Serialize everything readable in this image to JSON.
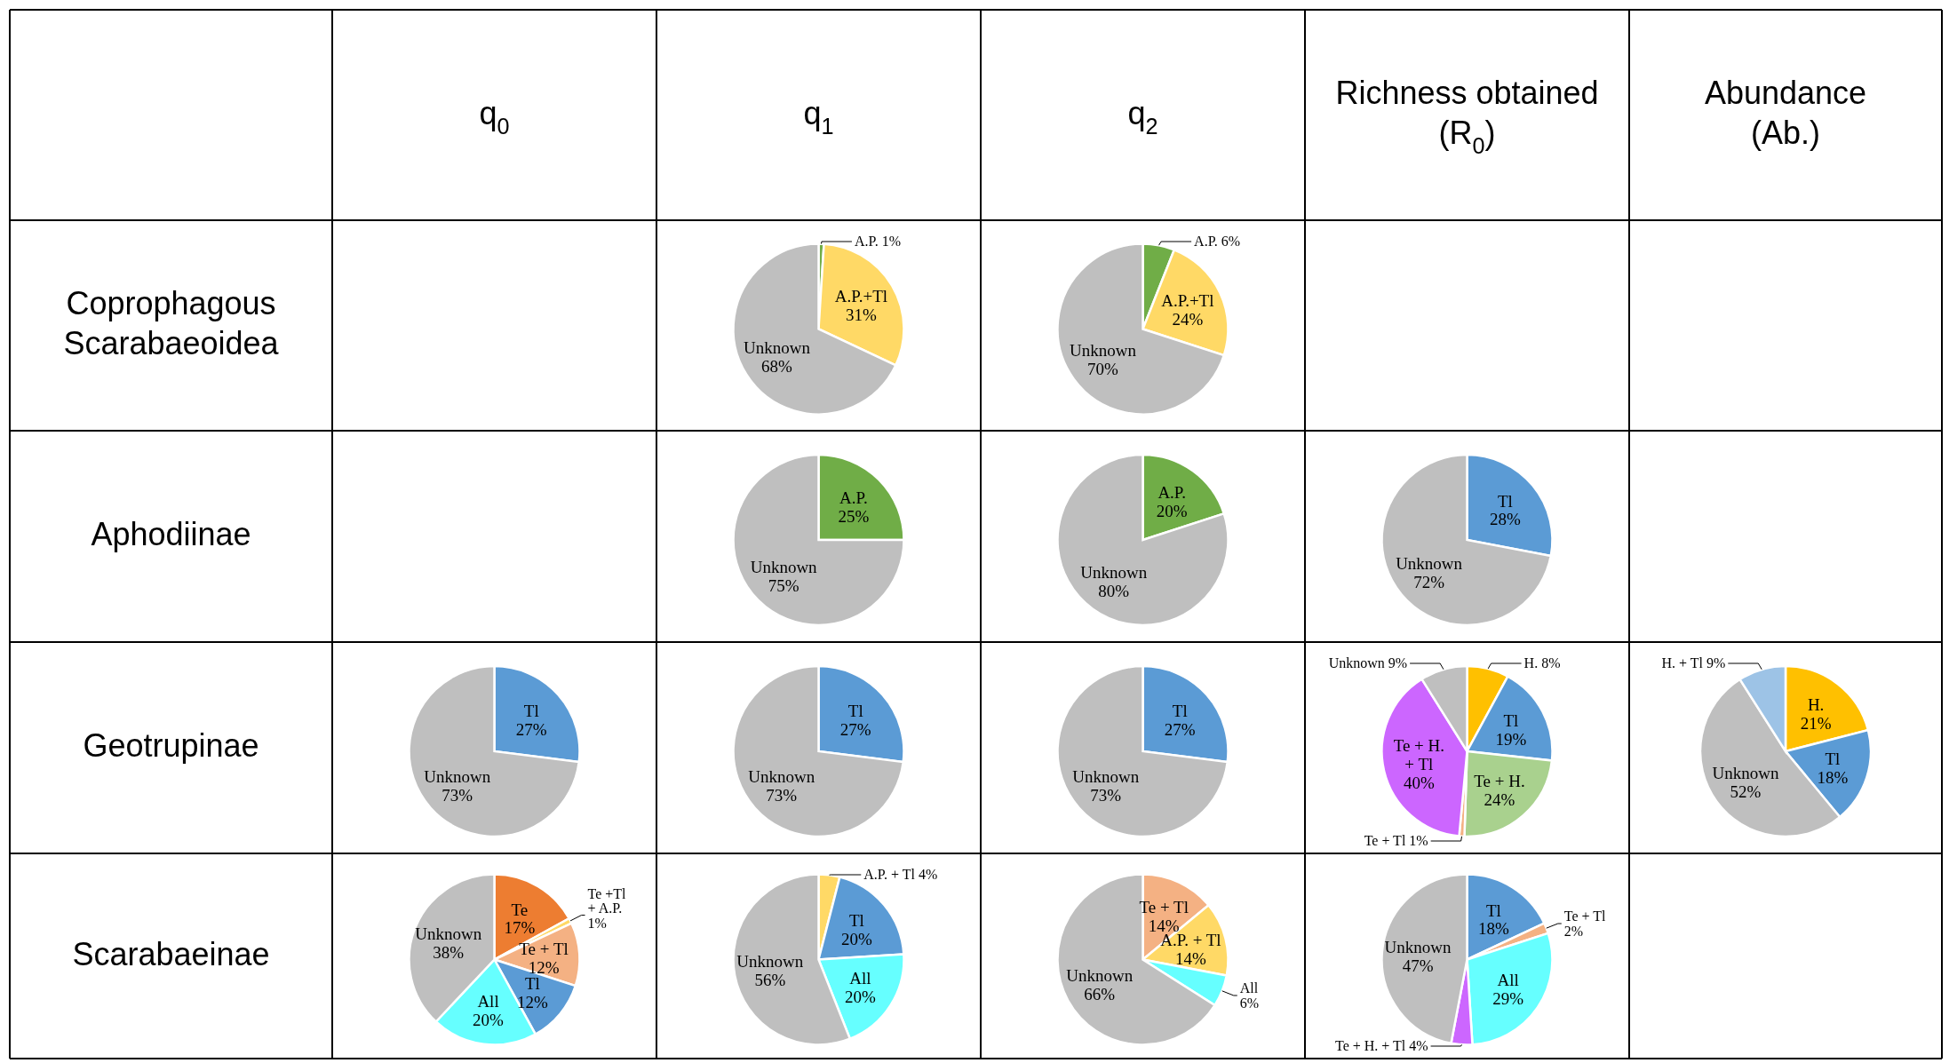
{
  "chart_data": [
    {
      "type": "other",
      "categories": [
        "q$_{0}$",
        "q$_{1}$",
        "q$_{2}$",
        "Richness obtained\n(R$_{0}$)",
        "Abundance\n(Ab.)"
      ],
      "y_categories": [
        "Coprophagous\nScarabaeoidea",
        "Aphodiinae",
        "Geotrupinae",
        "Scarabaeinae"
      ]
    },
    {
      "type": "pie",
      "categories": [
        "A.P.",
        "A.P.+Tl",
        "Unknown"
      ],
      "values": [
        1,
        31,
        68
      ],
      "colors": [
        "#70ad47",
        "#ffd966",
        "#bfbfbf"
      ],
      "value_labels": [
        "1%",
        "31%",
        "68%"
      ]
    },
    {
      "type": "pie",
      "categories": [
        "A.P.",
        "A.P.+Tl",
        "Unknown"
      ],
      "values": [
        6,
        24,
        70
      ],
      "colors": [
        "#70ad47",
        "#ffd966",
        "#bfbfbf"
      ],
      "value_labels": [
        "6%",
        "24%",
        "70%"
      ]
    },
    {
      "type": "pie",
      "categories": [
        "A.P.",
        "Unknown"
      ],
      "values": [
        25,
        75
      ],
      "colors": [
        "#70ad47",
        "#bfbfbf"
      ],
      "value_labels": [
        "25%",
        "75%"
      ]
    },
    {
      "type": "pie",
      "categories": [
        "A.P.",
        "Unknown"
      ],
      "values": [
        20,
        80
      ],
      "colors": [
        "#70ad47",
        "#bfbfbf"
      ],
      "value_labels": [
        "20%",
        "80%"
      ]
    },
    {
      "type": "pie",
      "categories": [
        "Tl",
        "Unknown"
      ],
      "values": [
        28,
        72
      ],
      "colors": [
        "#5b9bd5",
        "#bfbfbf"
      ],
      "value_labels": [
        "28%",
        "72%"
      ]
    },
    {
      "type": "pie",
      "categories": [
        "Tl",
        "Unknown"
      ],
      "values": [
        27,
        73
      ],
      "colors": [
        "#5b9bd5",
        "#bfbfbf"
      ],
      "value_labels": [
        "27%",
        "73%"
      ]
    },
    {
      "type": "pie",
      "categories": [
        "Tl",
        "Unknown"
      ],
      "values": [
        27,
        73
      ],
      "colors": [
        "#5b9bd5",
        "#bfbfbf"
      ],
      "value_labels": [
        "27%",
        "73%"
      ]
    },
    {
      "type": "pie",
      "categories": [
        "Tl",
        "Unknown"
      ],
      "values": [
        27,
        73
      ],
      "colors": [
        "#5b9bd5",
        "#bfbfbf"
      ],
      "value_labels": [
        "27%",
        "73%"
      ]
    },
    {
      "type": "pie",
      "categories": [
        "H.",
        "Tl",
        "Te + H.",
        "Te + Tl",
        "Te + H. + Tl",
        "Unknown"
      ],
      "values": [
        8,
        19,
        24,
        1,
        40,
        9
      ],
      "colors": [
        "#ffc000",
        "#5b9bd5",
        "#a9d18e",
        "#f4b183",
        "#cc66ff",
        "#bfbfbf"
      ],
      "value_labels": [
        "8%",
        "19%",
        "24%",
        "1%",
        "40%",
        "9%"
      ]
    },
    {
      "type": "pie",
      "categories": [
        "H.",
        "Tl",
        "Unknown",
        "H. + Tl"
      ],
      "values": [
        21,
        18,
        52,
        9
      ],
      "colors": [
        "#ffc000",
        "#5b9bd5",
        "#bfbfbf",
        "#9dc3e6"
      ],
      "value_labels": [
        "21%",
        "18%",
        "52%",
        "9%"
      ]
    },
    {
      "type": "pie",
      "categories": [
        "Te",
        "Te +Tl + A.P.",
        "Te + Tl",
        "Tl",
        "All",
        "Unknown"
      ],
      "values": [
        17,
        1,
        12,
        12,
        20,
        38
      ],
      "colors": [
        "#ed7d31",
        "#ffd966",
        "#f4b183",
        "#5b9bd5",
        "#66ffff",
        "#bfbfbf"
      ],
      "value_labels": [
        "17%",
        "1%",
        "12%",
        "12%",
        "20%",
        "38%"
      ]
    },
    {
      "type": "pie",
      "categories": [
        "A.P. + Tl",
        "Tl",
        "All",
        "Unknown"
      ],
      "values": [
        4,
        20,
        20,
        56
      ],
      "colors": [
        "#ffd966",
        "#5b9bd5",
        "#66ffff",
        "#bfbfbf"
      ],
      "value_labels": [
        "4%",
        "20%",
        "20%",
        "56%"
      ]
    },
    {
      "type": "pie",
      "categories": [
        "Te + Tl",
        "A.P. + Tl",
        "All",
        "Unknown"
      ],
      "values": [
        14,
        14,
        6,
        66
      ],
      "colors": [
        "#f4b183",
        "#ffd966",
        "#66ffff",
        "#bfbfbf"
      ],
      "value_labels": [
        "14%",
        "14%",
        "6%",
        "66%"
      ]
    },
    {
      "type": "pie",
      "categories": [
        "Tl",
        "Te + Tl",
        "All",
        "Te + H. + Tl",
        "Unknown"
      ],
      "values": [
        18,
        2,
        29,
        4,
        47
      ],
      "colors": [
        "#5b9bd5",
        "#f4b183",
        "#66ffff",
        "#cc66ff",
        "#bfbfbf"
      ],
      "value_labels": [
        "18%",
        "2%",
        "29%",
        "4%",
        "47%"
      ]
    }
  ]
}
